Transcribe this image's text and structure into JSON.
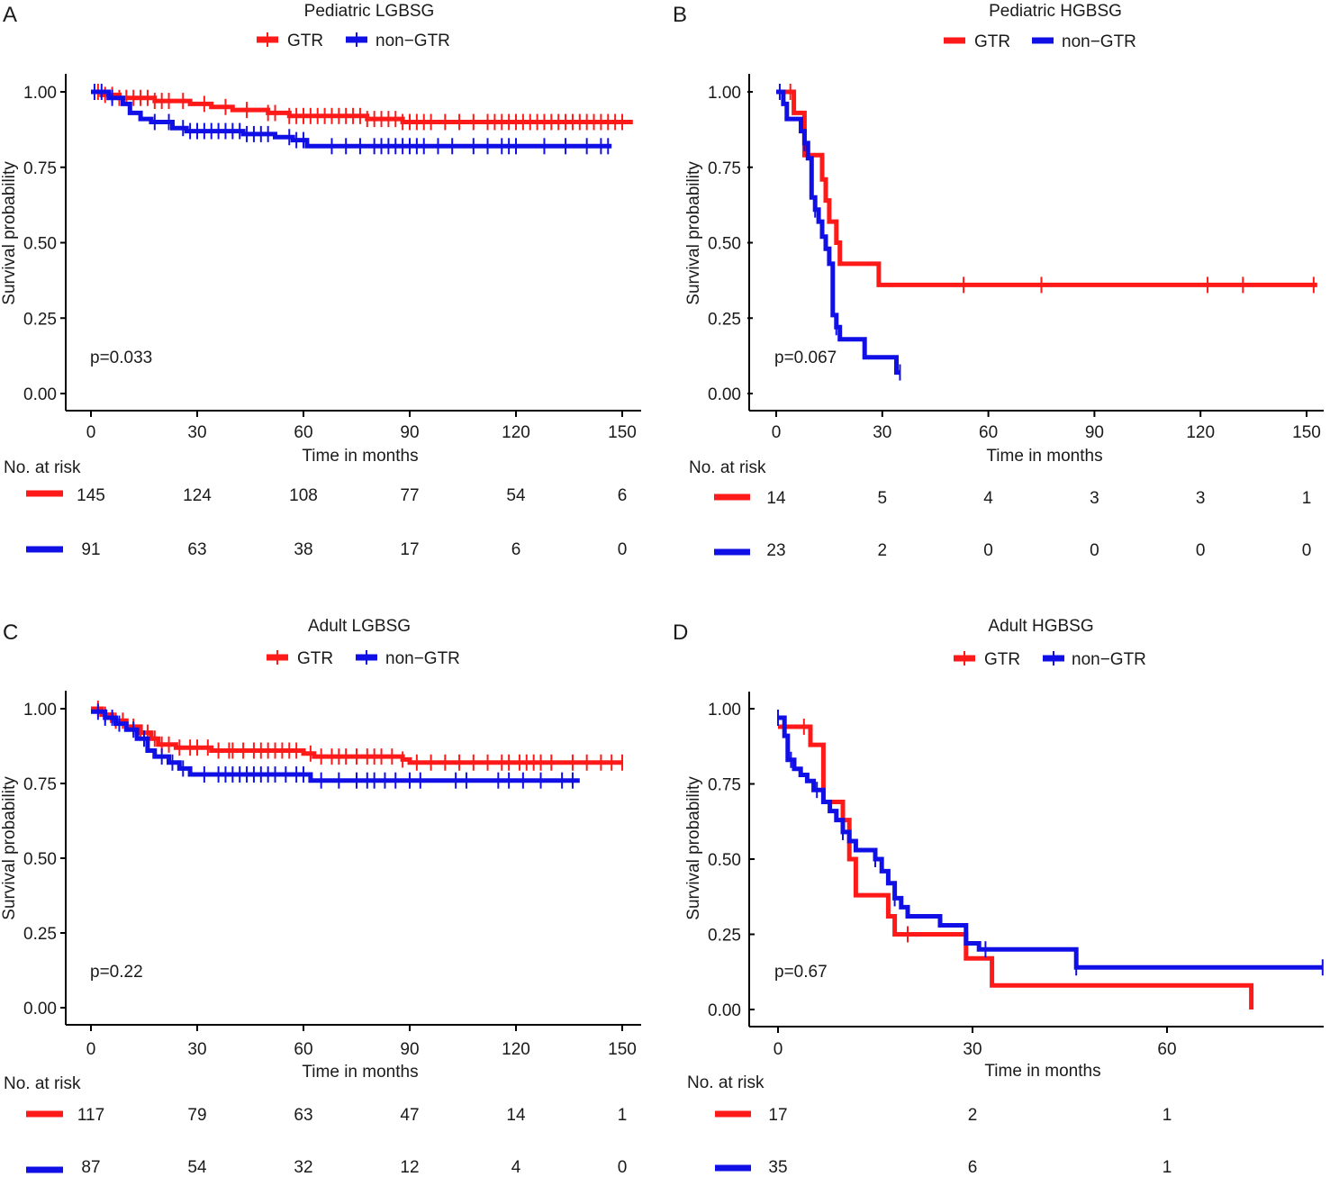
{
  "colors": {
    "gtr": "#ff1a1a",
    "non_gtr": "#1010e6",
    "axis": "#000000"
  },
  "chart_data": [
    {
      "panel": "A",
      "type": "line",
      "title": "Pediatric LGBSG",
      "legend": [
        "GTR",
        "non−GTR"
      ],
      "xlabel": "Time in months",
      "ylabel": "Survival probability",
      "xlim": [
        0,
        150
      ],
      "ylim": [
        0,
        1
      ],
      "xticks": [
        0,
        30,
        60,
        90,
        120,
        150
      ],
      "xtick_labels": [
        "0",
        "30",
        "60",
        "90",
        "120",
        "150"
      ],
      "yticks": [
        0,
        0.25,
        0.5,
        0.75,
        1
      ],
      "ytick_labels": [
        "0.00",
        "0.25",
        "0.50",
        "0.75",
        "1.00"
      ],
      "pvalue": "p=0.033",
      "risk_title": "No. at risk",
      "risk_times": [
        0,
        30,
        60,
        90,
        120,
        150
      ],
      "series": [
        {
          "name": "GTR",
          "color": "#ff1a1a",
          "steps": [
            [
              0,
              1.0
            ],
            [
              3,
              0.99
            ],
            [
              8,
              0.98
            ],
            [
              18,
              0.97
            ],
            [
              28,
              0.96
            ],
            [
              34,
              0.95
            ],
            [
              40,
              0.94
            ],
            [
              50,
              0.93
            ],
            [
              56,
              0.92
            ],
            [
              78,
              0.91
            ],
            [
              88,
              0.9
            ],
            [
              153,
              0.9
            ]
          ],
          "censor": [
            2,
            4,
            6,
            8,
            10,
            12,
            14,
            16,
            18,
            20,
            22,
            26,
            32,
            38,
            44,
            50,
            52,
            56,
            58,
            60,
            62,
            64,
            66,
            68,
            70,
            72,
            74,
            76,
            78,
            80,
            82,
            84,
            86,
            88,
            90,
            92,
            94,
            96,
            100,
            104,
            108,
            112,
            114,
            116,
            118,
            120,
            122,
            124,
            126,
            128,
            130,
            132,
            134,
            136,
            138,
            140,
            142,
            144,
            146,
            148,
            150
          ],
          "risk": [
            "145",
            "124",
            "108",
            "77",
            "54",
            "6"
          ]
        },
        {
          "name": "non−GTR",
          "color": "#1010e6",
          "steps": [
            [
              0,
              1.0
            ],
            [
              5,
              0.98
            ],
            [
              9,
              0.96
            ],
            [
              11,
              0.93
            ],
            [
              14,
              0.91
            ],
            [
              17,
              0.9
            ],
            [
              23,
              0.88
            ],
            [
              27,
              0.87
            ],
            [
              43,
              0.86
            ],
            [
              52,
              0.85
            ],
            [
              57,
              0.84
            ],
            [
              61,
              0.82
            ],
            [
              147,
              0.82
            ]
          ],
          "censor": [
            1,
            3,
            6,
            18,
            22,
            26,
            28,
            30,
            32,
            34,
            36,
            38,
            40,
            42,
            44,
            46,
            48,
            50,
            56,
            58,
            60,
            68,
            72,
            76,
            80,
            82,
            84,
            86,
            88,
            90,
            92,
            94,
            98,
            102,
            108,
            112,
            116,
            118,
            120,
            128,
            134,
            140,
            144,
            146
          ],
          "risk": [
            "91",
            "63",
            "38",
            "17",
            "6",
            "0"
          ]
        }
      ]
    },
    {
      "panel": "B",
      "type": "line",
      "title": "Pediatric HGBSG",
      "legend": [
        "GTR",
        "non−GTR"
      ],
      "xlabel": "Time in months",
      "ylabel": "Survival probability",
      "xlim": [
        0,
        150
      ],
      "ylim": [
        0,
        1
      ],
      "xticks": [
        0,
        30,
        60,
        90,
        120,
        150
      ],
      "xtick_labels": [
        "0",
        "30",
        "60",
        "90",
        "120",
        "150"
      ],
      "yticks": [
        0,
        0.25,
        0.5,
        0.75,
        1
      ],
      "ytick_labels": [
        "0.00",
        "0.25",
        "0.50",
        "0.75",
        "1.00"
      ],
      "pvalue": "p=0.067",
      "risk_title": "No. at risk",
      "risk_times": [
        0,
        30,
        60,
        90,
        120,
        150
      ],
      "series": [
        {
          "name": "GTR",
          "color": "#ff1a1a",
          "steps": [
            [
              0,
              1.0
            ],
            [
              5,
              0.93
            ],
            [
              8,
              0.79
            ],
            [
              13,
              0.71
            ],
            [
              14,
              0.64
            ],
            [
              15,
              0.57
            ],
            [
              17,
              0.5
            ],
            [
              18,
              0.43
            ],
            [
              29,
              0.36
            ],
            [
              153,
              0.36
            ]
          ],
          "censor": [
            4,
            53,
            75,
            122,
            132,
            152
          ],
          "risk": [
            "14",
            "5",
            "4",
            "3",
            "3",
            "1"
          ]
        },
        {
          "name": "non−GTR",
          "color": "#1010e6",
          "steps": [
            [
              0,
              1.0
            ],
            [
              2,
              0.96
            ],
            [
              3,
              0.91
            ],
            [
              7,
              0.87
            ],
            [
              8,
              0.83
            ],
            [
              9,
              0.78
            ],
            [
              10,
              0.65
            ],
            [
              11,
              0.61
            ],
            [
              12,
              0.57
            ],
            [
              13,
              0.52
            ],
            [
              14,
              0.48
            ],
            [
              15,
              0.43
            ],
            [
              16,
              0.26
            ],
            [
              17,
              0.22
            ],
            [
              18,
              0.18
            ],
            [
              25,
              0.12
            ],
            [
              34,
              0.07
            ],
            [
              35,
              0.07
            ]
          ],
          "censor": [
            1,
            8,
            11,
            17,
            35
          ],
          "risk": [
            "23",
            "2",
            "0",
            "0",
            "0",
            "0"
          ]
        }
      ]
    },
    {
      "panel": "C",
      "type": "line",
      "title": "Adult LGBSG",
      "legend": [
        "GTR",
        "non−GTR"
      ],
      "xlabel": "Time in months",
      "ylabel": "Survival probability",
      "xlim": [
        0,
        150
      ],
      "ylim": [
        0,
        1
      ],
      "xticks": [
        0,
        30,
        60,
        90,
        120,
        150
      ],
      "xtick_labels": [
        "0",
        "30",
        "60",
        "90",
        "120",
        "150"
      ],
      "yticks": [
        0,
        0.25,
        0.5,
        0.75,
        1
      ],
      "ytick_labels": [
        "0.00",
        "0.25",
        "0.50",
        "0.75",
        "1.00"
      ],
      "pvalue": "p=0.22",
      "risk_title": "No. at risk",
      "risk_times": [
        0,
        30,
        60,
        90,
        120,
        150
      ],
      "series": [
        {
          "name": "GTR",
          "color": "#ff1a1a",
          "steps": [
            [
              0,
              1.0
            ],
            [
              3,
              0.98
            ],
            [
              6,
              0.96
            ],
            [
              10,
              0.94
            ],
            [
              14,
              0.92
            ],
            [
              17,
              0.9
            ],
            [
              19,
              0.88
            ],
            [
              24,
              0.87
            ],
            [
              34,
              0.86
            ],
            [
              45,
              0.86
            ],
            [
              60,
              0.85
            ],
            [
              63,
              0.84
            ],
            [
              88,
              0.83
            ],
            [
              90,
              0.82
            ],
            [
              150,
              0.82
            ]
          ],
          "censor": [
            2,
            4,
            7,
            9,
            12,
            14,
            16,
            18,
            20,
            22,
            25,
            28,
            30,
            33,
            36,
            39,
            40,
            43,
            46,
            48,
            50,
            52,
            54,
            56,
            58,
            62,
            65,
            68,
            70,
            72,
            75,
            78,
            80,
            82,
            85,
            88,
            92,
            96,
            100,
            104,
            108,
            112,
            116,
            118,
            121,
            123,
            125,
            127,
            130,
            136,
            140,
            144,
            147,
            150
          ],
          "risk": [
            "117",
            "79",
            "63",
            "47",
            "14",
            "1"
          ]
        },
        {
          "name": "non−GTR",
          "color": "#1010e6",
          "steps": [
            [
              0,
              0.99
            ],
            [
              4,
              0.97
            ],
            [
              7,
              0.95
            ],
            [
              10,
              0.93
            ],
            [
              13,
              0.9
            ],
            [
              16,
              0.86
            ],
            [
              18,
              0.84
            ],
            [
              22,
              0.82
            ],
            [
              25,
              0.8
            ],
            [
              28,
              0.78
            ],
            [
              62,
              0.76
            ],
            [
              138,
              0.76
            ]
          ],
          "censor": [
            2,
            4,
            6,
            8,
            12,
            15,
            20,
            23,
            26,
            32,
            36,
            38,
            40,
            42,
            44,
            46,
            48,
            50,
            52,
            55,
            58,
            60,
            65,
            70,
            75,
            78,
            80,
            83,
            86,
            90,
            93,
            103,
            106,
            115,
            118,
            122,
            127,
            133,
            136
          ],
          "risk": [
            "87",
            "54",
            "32",
            "12",
            "4",
            "0"
          ]
        }
      ]
    },
    {
      "panel": "D",
      "type": "line",
      "title": "Adult HGBSG",
      "legend": [
        "GTR",
        "non−GTR"
      ],
      "xlabel": "Time in months",
      "ylabel": "Survival probability",
      "xlim": [
        0,
        84
      ],
      "ylim": [
        0,
        1
      ],
      "xticks": [
        0,
        30,
        60
      ],
      "xtick_labels": [
        "0",
        "30",
        "60"
      ],
      "yticks": [
        0,
        0.25,
        0.5,
        0.75,
        1
      ],
      "ytick_labels": [
        "0.00",
        "0.25",
        "0.50",
        "0.75",
        "1.00"
      ],
      "pvalue": "p=0.67",
      "risk_title": "No. at risk",
      "risk_times": [
        0,
        30,
        60
      ],
      "series": [
        {
          "name": "GTR",
          "color": "#ff1a1a",
          "steps": [
            [
              0,
              0.94
            ],
            [
              5,
              0.88
            ],
            [
              7,
              0.69
            ],
            [
              10,
              0.63
            ],
            [
              11,
              0.5
            ],
            [
              12,
              0.38
            ],
            [
              17,
              0.31
            ],
            [
              18,
              0.25
            ],
            [
              29,
              0.17
            ],
            [
              33,
              0.08
            ],
            [
              73,
              0.08
            ],
            [
              73,
              0.0
            ]
          ],
          "censor": [
            4,
            20
          ],
          "risk": [
            "17",
            "2",
            "1"
          ]
        },
        {
          "name": "non−GTR",
          "color": "#1010e6",
          "steps": [
            [
              0,
              0.97
            ],
            [
              1,
              0.91
            ],
            [
              1.5,
              0.83
            ],
            [
              2.5,
              0.8
            ],
            [
              3.5,
              0.78
            ],
            [
              4.5,
              0.76
            ],
            [
              5.5,
              0.73
            ],
            [
              7,
              0.69
            ],
            [
              8,
              0.66
            ],
            [
              9,
              0.63
            ],
            [
              10,
              0.59
            ],
            [
              11,
              0.56
            ],
            [
              12,
              0.53
            ],
            [
              15,
              0.5
            ],
            [
              16,
              0.46
            ],
            [
              17,
              0.42
            ],
            [
              18,
              0.37
            ],
            [
              19,
              0.34
            ],
            [
              20,
              0.31
            ],
            [
              25,
              0.28
            ],
            [
              29,
              0.22
            ],
            [
              31,
              0.2
            ],
            [
              46,
              0.14
            ],
            [
              84,
              0.14
            ]
          ],
          "censor": [
            0,
            2,
            6,
            10,
            15,
            18,
            32,
            46,
            84
          ],
          "risk": [
            "35",
            "6",
            "1"
          ]
        }
      ]
    }
  ],
  "panels": [
    {
      "letter": "A",
      "title": "Pediatric LGBSG",
      "legend_gtr": "GTR",
      "legend_non": "non−GTR",
      "xlabel": "Time in months",
      "ylabel": "Survival probability",
      "pvalue": "p=0.033",
      "risk_title": "No. at risk"
    },
    {
      "letter": "B",
      "title": "Pediatric HGBSG",
      "legend_gtr": "GTR",
      "legend_non": "non−GTR",
      "xlabel": "Time in months",
      "ylabel": "Survival probability",
      "pvalue": "p=0.067",
      "risk_title": "No. at risk"
    },
    {
      "letter": "C",
      "title": "Adult LGBSG",
      "legend_gtr": "GTR",
      "legend_non": "non−GTR",
      "xlabel": "Time in months",
      "ylabel": "Survival probability",
      "pvalue": "p=0.22",
      "risk_title": "No. at risk"
    },
    {
      "letter": "D",
      "title": "Adult HGBSG",
      "legend_gtr": "GTR",
      "legend_non": "non−GTR",
      "xlabel": "Time in months",
      "ylabel": "Survival probability",
      "pvalue": "p=0.67",
      "risk_title": "No. at risk"
    }
  ]
}
